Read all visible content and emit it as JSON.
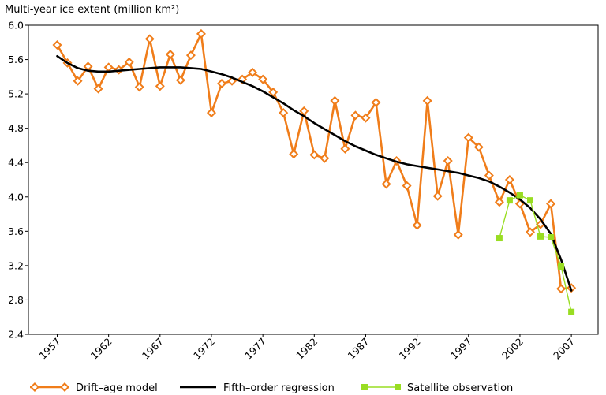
{
  "chart_data": {
    "type": "line",
    "title": "Multi-year ice extent (million km²)",
    "xlabel": "",
    "ylabel": "",
    "xlim": [
      1954.2,
      2009.6
    ],
    "ylim": [
      2.4,
      6.0
    ],
    "y_ticks": [
      "6.0",
      "5.6",
      "5.2",
      "4.8",
      "4.4",
      "4.0",
      "3.6",
      "3.2",
      "2.8",
      "2.4"
    ],
    "x_ticks": [
      "1957",
      "1962",
      "1967",
      "1972",
      "1977",
      "1982",
      "1987",
      "1992",
      "1997",
      "2002",
      "2007"
    ],
    "grid": false,
    "legend_position": "bottom",
    "series": [
      {
        "name": "Drift–age model",
        "color": "#f07d1a",
        "marker": "diamond-open",
        "x": [
          1957,
          1958,
          1959,
          1960,
          1961,
          1962,
          1963,
          1964,
          1965,
          1966,
          1967,
          1968,
          1969,
          1970,
          1971,
          1972,
          1973,
          1974,
          1975,
          1976,
          1977,
          1978,
          1979,
          1980,
          1981,
          1982,
          1983,
          1984,
          1985,
          1986,
          1987,
          1988,
          1989,
          1990,
          1991,
          1992,
          1993,
          1994,
          1995,
          1996,
          1997,
          1998,
          1999,
          2000,
          2001,
          2002,
          2003,
          2004,
          2005,
          2006,
          2007
        ],
        "values": [
          5.77,
          5.56,
          5.35,
          5.52,
          5.26,
          5.51,
          5.48,
          5.57,
          5.28,
          5.84,
          5.29,
          5.66,
          5.36,
          5.65,
          5.9,
          4.98,
          5.32,
          5.35,
          5.37,
          5.45,
          5.37,
          5.22,
          4.98,
          4.5,
          5.0,
          4.49,
          4.45,
          5.12,
          4.56,
          4.95,
          4.92,
          5.1,
          4.15,
          4.42,
          4.13,
          3.67,
          5.12,
          4.01,
          4.42,
          3.56,
          4.69,
          4.58,
          4.25,
          3.94,
          4.2,
          3.92,
          3.59,
          3.68,
          3.92,
          2.93,
          2.94
        ]
      },
      {
        "name": "Fifth–order regression",
        "color": "#000000",
        "marker": "none",
        "x": [
          1957,
          1958,
          1959,
          1960,
          1961,
          1962,
          1963,
          1964,
          1965,
          1966,
          1967,
          1968,
          1969,
          1970,
          1971,
          1972,
          1973,
          1974,
          1975,
          1976,
          1977,
          1978,
          1979,
          1980,
          1981,
          1982,
          1983,
          1984,
          1985,
          1986,
          1987,
          1988,
          1989,
          1990,
          1991,
          1992,
          1993,
          1994,
          1995,
          1996,
          1997,
          1998,
          1999,
          2000,
          2001,
          2002,
          2003,
          2004,
          2005,
          2006,
          2007
        ],
        "values": [
          5.64,
          5.56,
          5.5,
          5.47,
          5.46,
          5.46,
          5.47,
          5.48,
          5.49,
          5.5,
          5.51,
          5.51,
          5.51,
          5.5,
          5.49,
          5.46,
          5.43,
          5.39,
          5.34,
          5.29,
          5.23,
          5.16,
          5.09,
          5.01,
          4.94,
          4.86,
          4.79,
          4.72,
          4.65,
          4.59,
          4.54,
          4.49,
          4.45,
          4.41,
          4.38,
          4.36,
          4.34,
          4.32,
          4.3,
          4.28,
          4.25,
          4.22,
          4.18,
          4.12,
          4.05,
          3.97,
          3.87,
          3.74,
          3.57,
          3.27,
          2.91
        ]
      },
      {
        "name": "Satellite observation",
        "color": "#99dd22",
        "marker": "square-filled",
        "x": [
          2000,
          2001,
          2002,
          2003,
          2004,
          2005,
          2006,
          2007
        ],
        "values": [
          3.52,
          3.96,
          4.02,
          3.96,
          3.54,
          3.53,
          3.19,
          2.66
        ]
      }
    ]
  }
}
